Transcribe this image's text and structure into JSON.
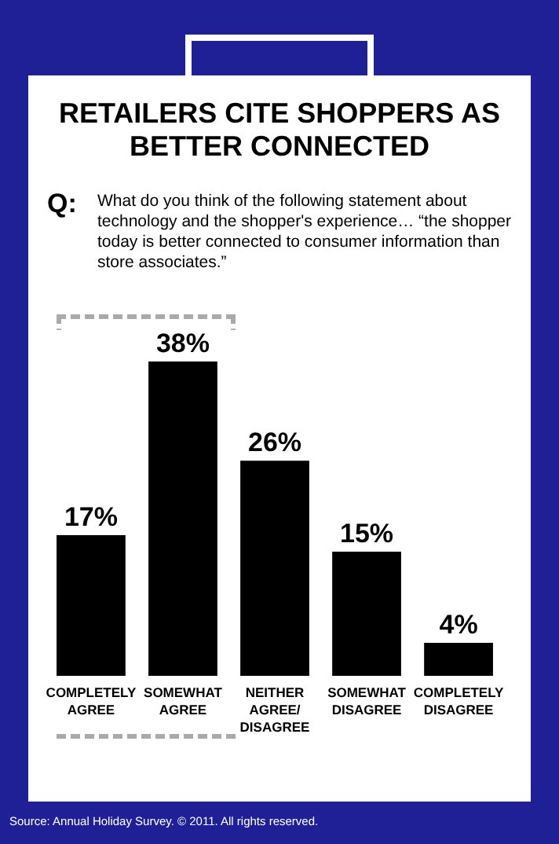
{
  "chart_data": {
    "type": "bar",
    "title": "RETAILERS CITE SHOPPERS AS BETTER CONNECTED",
    "subtitle": "What do you think of the following statement about technology and the shopper's experience… “the shopper today is better connected to consumer information than store associates.”",
    "categories": [
      "COMPLETELY AGREE",
      "SOMEWHAT AGREE",
      "NEITHER AGREE/DISAGREE",
      "SOMEWHAT DISAGREE",
      "COMPLETELY DISAGREE"
    ],
    "values": [
      17,
      38,
      26,
      15,
      4
    ],
    "value_labels": [
      "17%",
      "38%",
      "26%",
      "15%",
      "4%"
    ],
    "color": "#000000",
    "annotations": [
      "Q:",
      "Source: Annual Holiday Survey. © 2011. All rights reserved."
    ]
  }
}
